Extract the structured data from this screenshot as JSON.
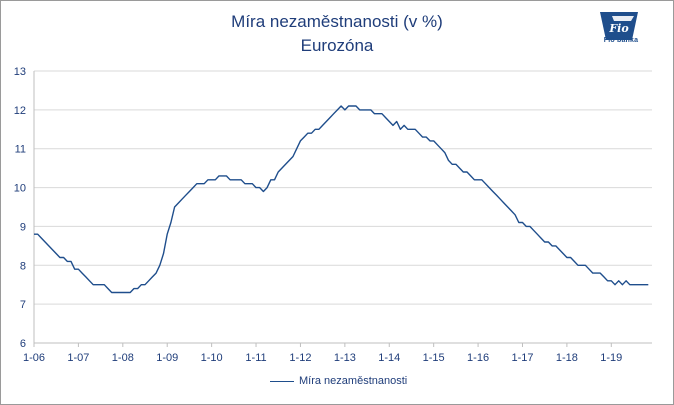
{
  "title": "Míra nezaměstnanosti (v %)",
  "subtitle": "Eurozóna",
  "logo": {
    "name": "Fio",
    "caption": "Fio banka"
  },
  "colors": {
    "line": "#1f4e8c",
    "text": "#1f3d7a",
    "grid": "#d9d9d9",
    "axis": "#bfbfbf"
  },
  "chart_data": {
    "type": "line",
    "ylim": [
      6,
      13
    ],
    "y_ticks": [
      6,
      7,
      8,
      9,
      10,
      11,
      12,
      13
    ],
    "x_ticks": [
      "1-06",
      "1-07",
      "1-08",
      "1-09",
      "1-10",
      "1-11",
      "1-12",
      "1-13",
      "1-14",
      "1-15",
      "1-16",
      "1-17",
      "1-18",
      "1-19"
    ],
    "x_start": "2006-01",
    "x_end": "2019-11",
    "grid": "horizontal",
    "legend_position": "bottom",
    "series": [
      {
        "name": "Míra nezaměstnanosti",
        "values": [
          8.8,
          8.8,
          8.7,
          8.6,
          8.5,
          8.4,
          8.3,
          8.2,
          8.2,
          8.1,
          8.1,
          7.9,
          7.9,
          7.8,
          7.7,
          7.6,
          7.5,
          7.5,
          7.5,
          7.5,
          7.4,
          7.3,
          7.3,
          7.3,
          7.3,
          7.3,
          7.3,
          7.4,
          7.4,
          7.5,
          7.5,
          7.6,
          7.7,
          7.8,
          8.0,
          8.3,
          8.8,
          9.1,
          9.5,
          9.6,
          9.7,
          9.8,
          9.9,
          10.0,
          10.1,
          10.1,
          10.1,
          10.2,
          10.2,
          10.2,
          10.3,
          10.3,
          10.3,
          10.2,
          10.2,
          10.2,
          10.2,
          10.1,
          10.1,
          10.1,
          10.0,
          10.0,
          9.9,
          10.0,
          10.2,
          10.2,
          10.4,
          10.5,
          10.6,
          10.7,
          10.8,
          11.0,
          11.2,
          11.3,
          11.4,
          11.4,
          11.5,
          11.5,
          11.6,
          11.7,
          11.8,
          11.9,
          12.0,
          12.1,
          12.0,
          12.1,
          12.1,
          12.1,
          12.0,
          12.0,
          12.0,
          12.0,
          11.9,
          11.9,
          11.9,
          11.8,
          11.7,
          11.6,
          11.7,
          11.5,
          11.6,
          11.5,
          11.5,
          11.5,
          11.4,
          11.3,
          11.3,
          11.2,
          11.2,
          11.1,
          11.0,
          10.9,
          10.7,
          10.6,
          10.6,
          10.5,
          10.4,
          10.4,
          10.3,
          10.2,
          10.2,
          10.2,
          10.1,
          10.0,
          9.9,
          9.8,
          9.7,
          9.6,
          9.5,
          9.4,
          9.3,
          9.1,
          9.1,
          9.0,
          9.0,
          8.9,
          8.8,
          8.7,
          8.6,
          8.6,
          8.5,
          8.5,
          8.4,
          8.3,
          8.2,
          8.2,
          8.1,
          8.0,
          8.0,
          8.0,
          7.9,
          7.8,
          7.8,
          7.8,
          7.7,
          7.6,
          7.6,
          7.5,
          7.6,
          7.5,
          7.6,
          7.5,
          7.5,
          7.5,
          7.5,
          7.5,
          7.5
        ]
      }
    ]
  }
}
